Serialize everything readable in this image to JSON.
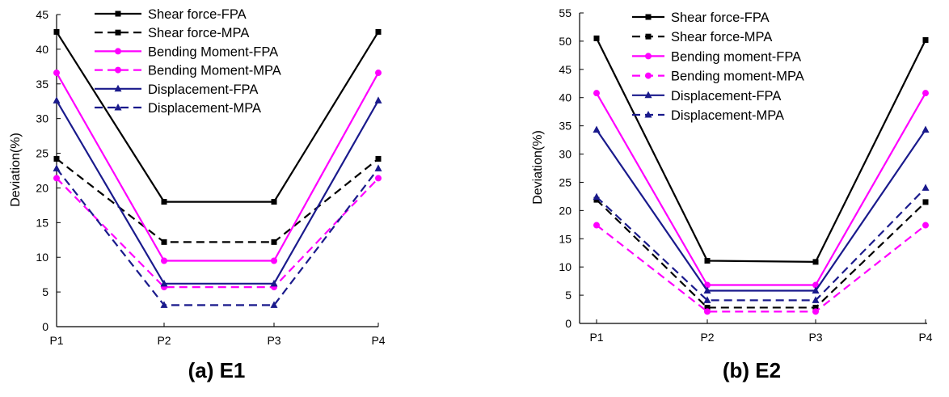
{
  "chart_data": [
    {
      "type": "line",
      "title": "(a) E1",
      "xlabel": "",
      "ylabel": "Deviation(%)",
      "categories": [
        "P1",
        "P2",
        "P3",
        "P4"
      ],
      "ylim": [
        0,
        45
      ],
      "yticks": [
        0,
        5,
        10,
        15,
        20,
        25,
        30,
        35,
        40,
        45
      ],
      "grid": false,
      "legend_position": "top-center",
      "series": [
        {
          "name": "Shear force-FPA",
          "values": [
            42.5,
            18.0,
            18.0,
            42.5
          ],
          "color": "#000000",
          "dash": "solid",
          "marker": "square"
        },
        {
          "name": "Shear force-MPA",
          "values": [
            24.2,
            12.2,
            12.2,
            24.2
          ],
          "color": "#000000",
          "dash": "dashed",
          "marker": "square"
        },
        {
          "name": "Bending Moment-FPA",
          "values": [
            36.6,
            9.5,
            9.5,
            36.6
          ],
          "color": "#ff00ff",
          "dash": "solid",
          "marker": "circle"
        },
        {
          "name": "Bending Moment-MPA",
          "values": [
            21.4,
            5.7,
            5.7,
            21.4
          ],
          "color": "#ff00ff",
          "dash": "dashed",
          "marker": "circle"
        },
        {
          "name": "Displacement-FPA",
          "values": [
            32.6,
            6.2,
            6.2,
            32.6
          ],
          "color": "#1a1a8c",
          "dash": "solid",
          "marker": "triangle"
        },
        {
          "name": "Displacement-MPA",
          "values": [
            22.8,
            3.1,
            3.1,
            22.8
          ],
          "color": "#1a1a8c",
          "dash": "dashed",
          "marker": "triangle"
        }
      ]
    },
    {
      "type": "line",
      "title": "(b) E2",
      "xlabel": "",
      "ylabel": "Deviation(%)",
      "categories": [
        "P1",
        "P2",
        "P3",
        "P4"
      ],
      "ylim": [
        0,
        55
      ],
      "yticks": [
        0,
        5,
        10,
        15,
        20,
        25,
        30,
        35,
        40,
        45,
        50,
        55
      ],
      "grid": false,
      "legend_position": "top-center",
      "series": [
        {
          "name": "Shear force-FPA",
          "values": [
            50.5,
            11.1,
            10.9,
            50.2
          ],
          "color": "#000000",
          "dash": "solid",
          "marker": "square"
        },
        {
          "name": "Shear force-MPA",
          "values": [
            21.9,
            2.8,
            2.8,
            21.5
          ],
          "color": "#000000",
          "dash": "dashed",
          "marker": "square"
        },
        {
          "name": "Bending moment-FPA",
          "values": [
            40.8,
            6.8,
            6.8,
            40.8
          ],
          "color": "#ff00ff",
          "dash": "solid",
          "marker": "circle"
        },
        {
          "name": "Bending moment-MPA",
          "values": [
            17.4,
            2.1,
            2.1,
            17.4
          ],
          "color": "#ff00ff",
          "dash": "dashed",
          "marker": "circle"
        },
        {
          "name": "Displacement-FPA",
          "values": [
            34.3,
            5.8,
            5.8,
            34.3
          ],
          "color": "#1a1a8c",
          "dash": "solid",
          "marker": "triangle"
        },
        {
          "name": "Displacement-MPA",
          "values": [
            22.4,
            4.1,
            4.1,
            24.0
          ],
          "color": "#1a1a8c",
          "dash": "dashed",
          "marker": "triangle"
        }
      ]
    }
  ]
}
